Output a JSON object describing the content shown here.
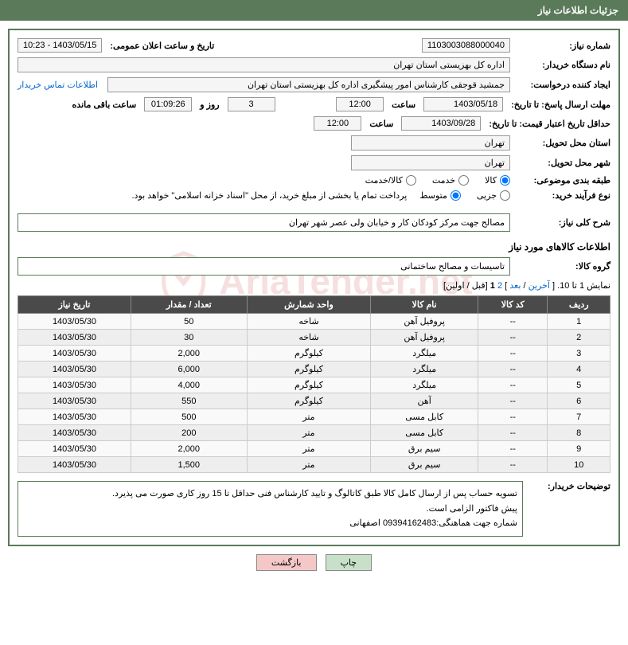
{
  "header": {
    "title": "جزئیات اطلاعات نیاز"
  },
  "form": {
    "need_number_label": "شماره نیاز:",
    "need_number": "1103003088000040",
    "announce_datetime_label": "تاریخ و ساعت اعلان عمومی:",
    "announce_datetime": "1403/05/15 - 10:23",
    "buyer_org_label": "نام دستگاه خریدار:",
    "buyer_org": "اداره کل بهزیستی استان تهران",
    "requester_label": "ایجاد کننده درخواست:",
    "requester": "جمشید قوجقی کارشناس امور پیشگیری اداره کل بهزیستی استان تهران",
    "buyer_contact_link": "اطلاعات تماس خریدار",
    "response_deadline_label": "مهلت ارسال پاسخ: تا تاریخ:",
    "response_deadline_date": "1403/05/18",
    "time_label": "ساعت",
    "response_deadline_time": "12:00",
    "days_remaining": "3",
    "days_and_label": "روز و",
    "time_remaining": "01:09:26",
    "time_remaining_label": "ساعت باقی مانده",
    "min_validity_label": "حداقل تاریخ اعتبار قیمت: تا تاریخ:",
    "min_validity_date": "1403/09/28",
    "min_validity_time": "12:00",
    "delivery_province_label": "استان محل تحویل:",
    "delivery_province": "تهران",
    "delivery_city_label": "شهر محل تحویل:",
    "delivery_city": "تهران",
    "category_label": "طبقه بندی موضوعی:",
    "category_options": {
      "goods": "کالا",
      "service": "خدمت",
      "goods_service": "کالا/خدمت"
    },
    "purchase_type_label": "نوع فرآیند خرید:",
    "purchase_type_options": {
      "partial": "جزیی",
      "medium": "متوسط"
    },
    "payment_note": "پرداخت تمام یا بخشی از مبلغ خرید، از محل \"اسناد خزانه اسلامی\" خواهد بود.",
    "overall_desc_label": "شرح کلی نیاز:",
    "overall_desc": "مصالح جهت مرکز کودکان کار و خیابان ولی عصر شهر تهران",
    "goods_info_title": "اطلاعات کالاهای مورد نیاز",
    "goods_group_label": "گروه کالا:",
    "goods_group": "تاسیسات و مصالح ساختمانی"
  },
  "pager": {
    "showing": "نمایش 1 تا 10.",
    "last": "آخرین",
    "next": "بعد",
    "page2": "2",
    "page1": "1",
    "prev": "قبل",
    "first": "اولین"
  },
  "table": {
    "headers": {
      "row": "ردیف",
      "code": "کد کالا",
      "name": "نام کالا",
      "unit": "واحد شمارش",
      "qty": "تعداد / مقدار",
      "need_date": "تاریخ نیاز"
    },
    "rows": [
      {
        "n": "1",
        "code": "--",
        "name": "پروفیل آهن",
        "unit": "شاخه",
        "qty": "50",
        "date": "1403/05/30"
      },
      {
        "n": "2",
        "code": "--",
        "name": "پروفیل آهن",
        "unit": "شاخه",
        "qty": "30",
        "date": "1403/05/30"
      },
      {
        "n": "3",
        "code": "--",
        "name": "میلگرد",
        "unit": "کیلوگرم",
        "qty": "2,000",
        "date": "1403/05/30"
      },
      {
        "n": "4",
        "code": "--",
        "name": "میلگرد",
        "unit": "کیلوگرم",
        "qty": "6,000",
        "date": "1403/05/30"
      },
      {
        "n": "5",
        "code": "--",
        "name": "میلگرد",
        "unit": "کیلوگرم",
        "qty": "4,000",
        "date": "1403/05/30"
      },
      {
        "n": "6",
        "code": "--",
        "name": "آهن",
        "unit": "کیلوگرم",
        "qty": "550",
        "date": "1403/05/30"
      },
      {
        "n": "7",
        "code": "--",
        "name": "کابل مسی",
        "unit": "متر",
        "qty": "500",
        "date": "1403/05/30"
      },
      {
        "n": "8",
        "code": "--",
        "name": "کابل مسی",
        "unit": "متر",
        "qty": "200",
        "date": "1403/05/30"
      },
      {
        "n": "9",
        "code": "--",
        "name": "سیم برق",
        "unit": "متر",
        "qty": "2,000",
        "date": "1403/05/30"
      },
      {
        "n": "10",
        "code": "--",
        "name": "سیم برق",
        "unit": "متر",
        "qty": "1,500",
        "date": "1403/05/30"
      }
    ]
  },
  "buyer_notes": {
    "label": "توضیحات خریدار:",
    "line1": "تسویه حساب پس از ارسال کامل کالا طبق کاتالوگ و تایید کارشناس فنی حداقل تا 15 روز کاری صورت می پذیرد.",
    "line2": "پیش فاکتور الزامی است.",
    "line3": "شماره جهت هماهنگی:09394162483 اصفهانی"
  },
  "buttons": {
    "print": "چاپ",
    "back": "بازگشت"
  },
  "watermark": {
    "text": "AriaTender.net"
  }
}
